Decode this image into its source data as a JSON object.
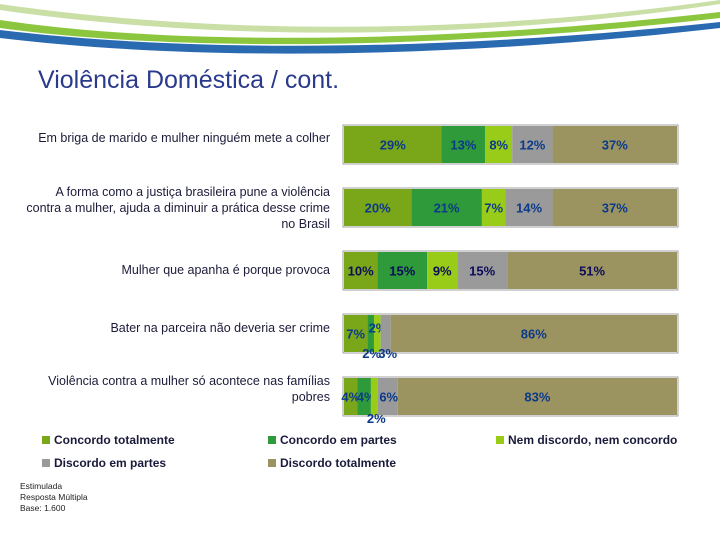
{
  "title": "Violência Doméstica / cont.",
  "chart_data": {
    "type": "bar",
    "orientation": "horizontal",
    "stacked": true,
    "categories": [
      "Em briga de marido e mulher ninguém mete a colher",
      "A forma como a justiça brasileira pune a violência contra a mulher, ajuda a diminuir a prática desse crime no Brasil",
      "Mulher que apanha é porque provoca",
      "Bater na parceira não deveria ser crime",
      "Violência contra a mulher só acontece nas famílias pobres"
    ],
    "series": [
      {
        "name": "Concordo totalmente",
        "color": "#7aa619",
        "values": [
          29,
          20,
          10,
          7,
          4
        ]
      },
      {
        "name": "Concordo em partes",
        "color": "#2e9a3a",
        "values": [
          13,
          21,
          15,
          2,
          4
        ]
      },
      {
        "name": "Nem discordo, nem concordo",
        "color": "#99cc18",
        "values": [
          8,
          7,
          9,
          2,
          2
        ]
      },
      {
        "name": "Discordo em partes",
        "color": "#9a9a9a",
        "values": [
          12,
          14,
          15,
          3,
          6
        ]
      },
      {
        "name": "Discordo totalmente",
        "color": "#9c9460",
        "values": [
          37,
          37,
          51,
          86,
          83
        ]
      }
    ],
    "value_labels": [
      [
        "29%",
        "13%",
        "8%",
        "12%",
        "37%"
      ],
      [
        "20%",
        "21%",
        "7%",
        "14%",
        "37%"
      ],
      [
        "10%",
        "15%",
        "9%",
        "15%",
        "51%"
      ],
      [
        "7%",
        "2%",
        "2%",
        "3%",
        "86%"
      ],
      [
        "4%",
        "4%",
        "2%",
        "6%",
        "83%"
      ]
    ],
    "legend_position": "bottom",
    "xlim": [
      0,
      100
    ]
  },
  "notes": [
    "Estimulada",
    "Resposta Múltipla",
    "Base: 1.600"
  ]
}
